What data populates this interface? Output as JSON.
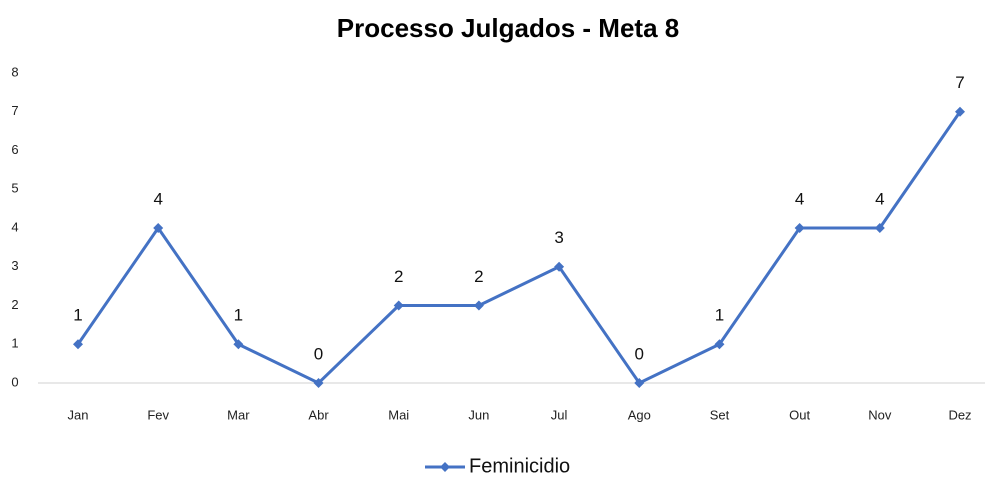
{
  "chart_data": {
    "type": "line",
    "title": "Processo Julgados - Meta 8",
    "categories": [
      "Jan",
      "Fev",
      "Mar",
      "Abr",
      "Mai",
      "Jun",
      "Jul",
      "Ago",
      "Set",
      "Out",
      "Nov",
      "Dez"
    ],
    "series": [
      {
        "name": "Feminicidio",
        "color": "#4472c4",
        "values": [
          1,
          4,
          1,
          0,
          2,
          2,
          3,
          0,
          1,
          4,
          4,
          7
        ]
      }
    ],
    "ylim": [
      0,
      8
    ],
    "yticks": [
      0,
      1,
      2,
      3,
      4,
      5,
      6,
      7,
      8
    ],
    "grid": false,
    "legend": "bottom"
  }
}
